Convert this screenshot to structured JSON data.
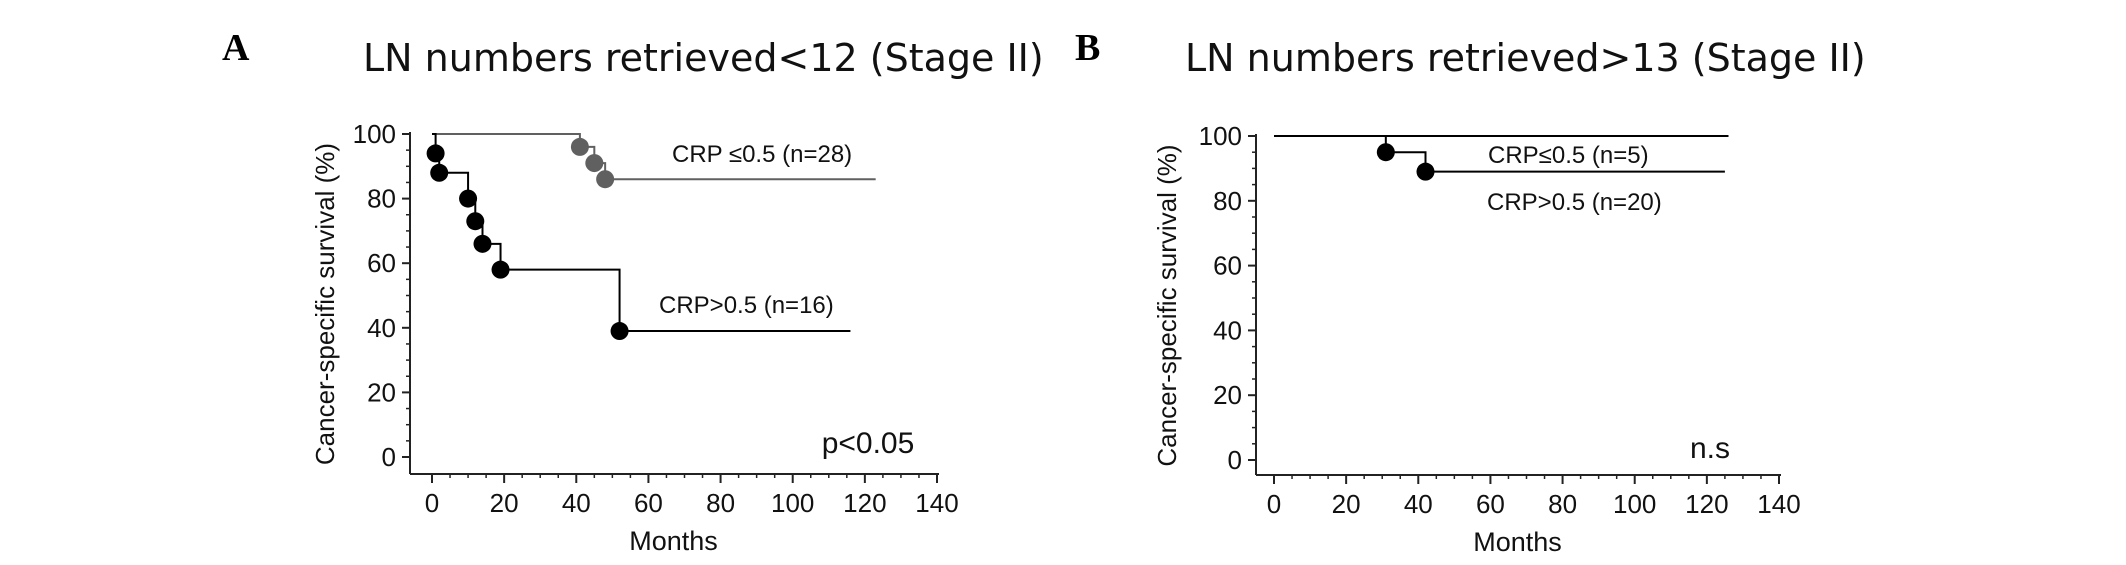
{
  "panels": [
    {
      "letter": "A",
      "title": "LN numbers retrieved<12 (Stage II)",
      "note": "p<0.05"
    },
    {
      "letter": "B",
      "title": "LN numbers retrieved>13 (Stage II)",
      "note": "n.s"
    }
  ],
  "chart_data": [
    {
      "type": "line",
      "step": true,
      "xlabel": "Months",
      "ylabel": "Cancer-specific survival (%)",
      "xlim": [
        0,
        140
      ],
      "ylim": [
        0,
        100
      ],
      "xticks": [
        0,
        20,
        40,
        60,
        80,
        100,
        120,
        140
      ],
      "yticks": [
        0,
        20,
        40,
        60,
        80,
        100
      ],
      "series": [
        {
          "name": "CRP ≤0.5 (n=28)",
          "color": "#606060",
          "x": [
            0,
            41,
            45,
            48,
            123
          ],
          "y": [
            100,
            96,
            91,
            86,
            86
          ],
          "events": [
            [
              41,
              96
            ],
            [
              45,
              91
            ],
            [
              48,
              86
            ]
          ]
        },
        {
          "name": "CRP>0.5 (n=16)",
          "color": "#000000",
          "x": [
            0,
            1,
            2,
            10,
            12,
            14,
            19,
            52,
            116
          ],
          "y": [
            100,
            94,
            88,
            80,
            73,
            66,
            58,
            39,
            39
          ],
          "events": [
            [
              1,
              94
            ],
            [
              2,
              88
            ],
            [
              10,
              80
            ],
            [
              12,
              73
            ],
            [
              14,
              66
            ],
            [
              19,
              58
            ],
            [
              52,
              39
            ]
          ]
        }
      ]
    },
    {
      "type": "line",
      "step": true,
      "xlabel": "Months",
      "ylabel": "Cancer-specific survival (%)",
      "xlim": [
        0,
        140
      ],
      "ylim": [
        0,
        100
      ],
      "xticks": [
        0,
        20,
        40,
        60,
        80,
        100,
        120,
        140
      ],
      "yticks": [
        0,
        20,
        40,
        60,
        80,
        100
      ],
      "series": [
        {
          "name": "CRP≤0.5 (n=5)",
          "color": "#000000",
          "x": [
            0,
            126
          ],
          "y": [
            100,
            100
          ],
          "events": []
        },
        {
          "name": "CRP>0.5 (n=20)",
          "color": "#000000",
          "x": [
            0,
            31,
            42,
            125
          ],
          "y": [
            100,
            95,
            89,
            89
          ],
          "events": [
            [
              31,
              95
            ],
            [
              42,
              89
            ]
          ]
        }
      ]
    }
  ]
}
